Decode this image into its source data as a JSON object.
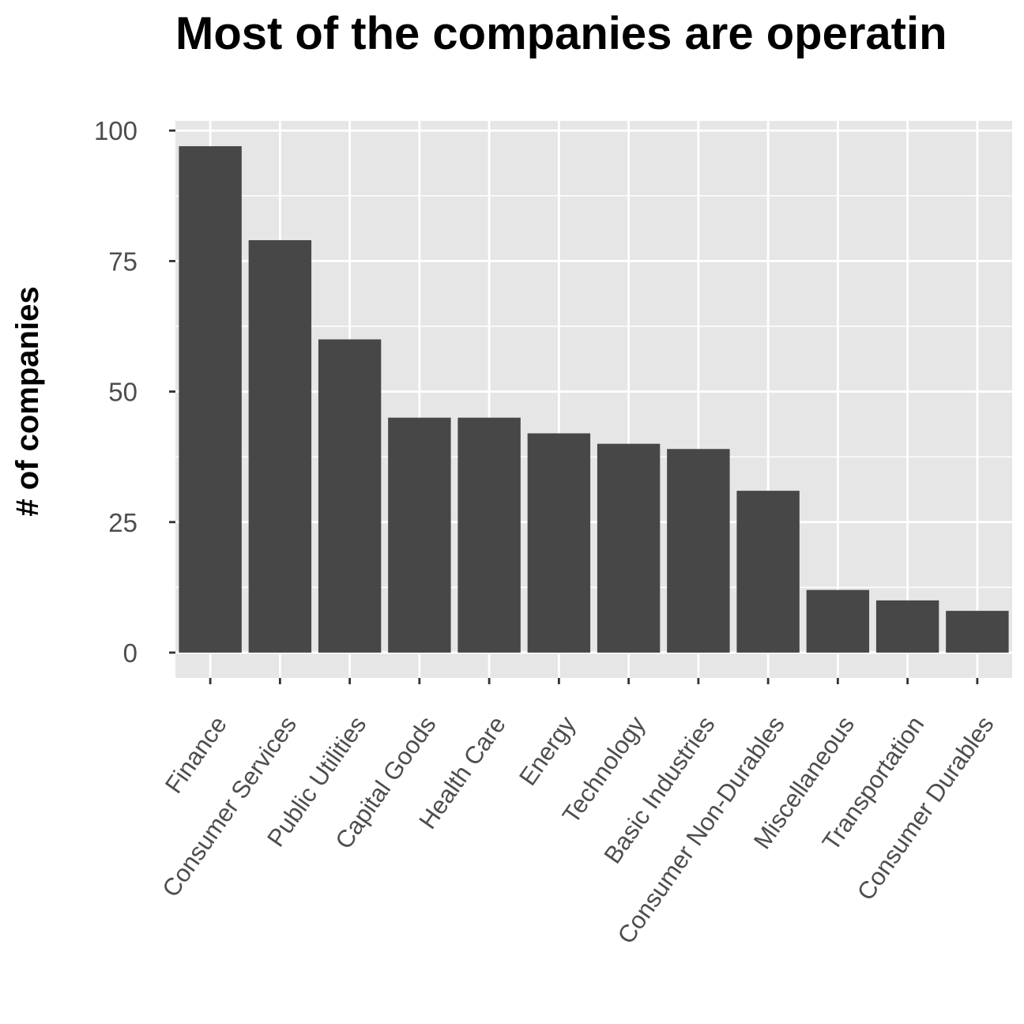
{
  "chart_data": {
    "type": "bar",
    "title": "Most of the companies are operatin",
    "xlabel": "",
    "ylabel": "# of companies",
    "categories": [
      "Finance",
      "Consumer Services",
      "Public Utilities",
      "Capital Goods",
      "Health Care",
      "Energy",
      "Technology",
      "Basic Industries",
      "Consumer Non-Durables",
      "Miscellaneous",
      "Transportation",
      "Consumer Durables"
    ],
    "values": [
      97,
      79,
      60,
      45,
      45,
      42,
      40,
      39,
      31,
      12,
      10,
      8
    ],
    "yticks": [
      0,
      25,
      50,
      75,
      100
    ],
    "ylim": [
      -4.85,
      101.85
    ],
    "grid": true,
    "legend": "none",
    "colors": {
      "bar": "#474747",
      "panel": "#e6e6e6",
      "grid": "#ffffff",
      "tick_text": "#4d4d4d",
      "tick_mark": "#333333",
      "title": "#000000"
    }
  }
}
